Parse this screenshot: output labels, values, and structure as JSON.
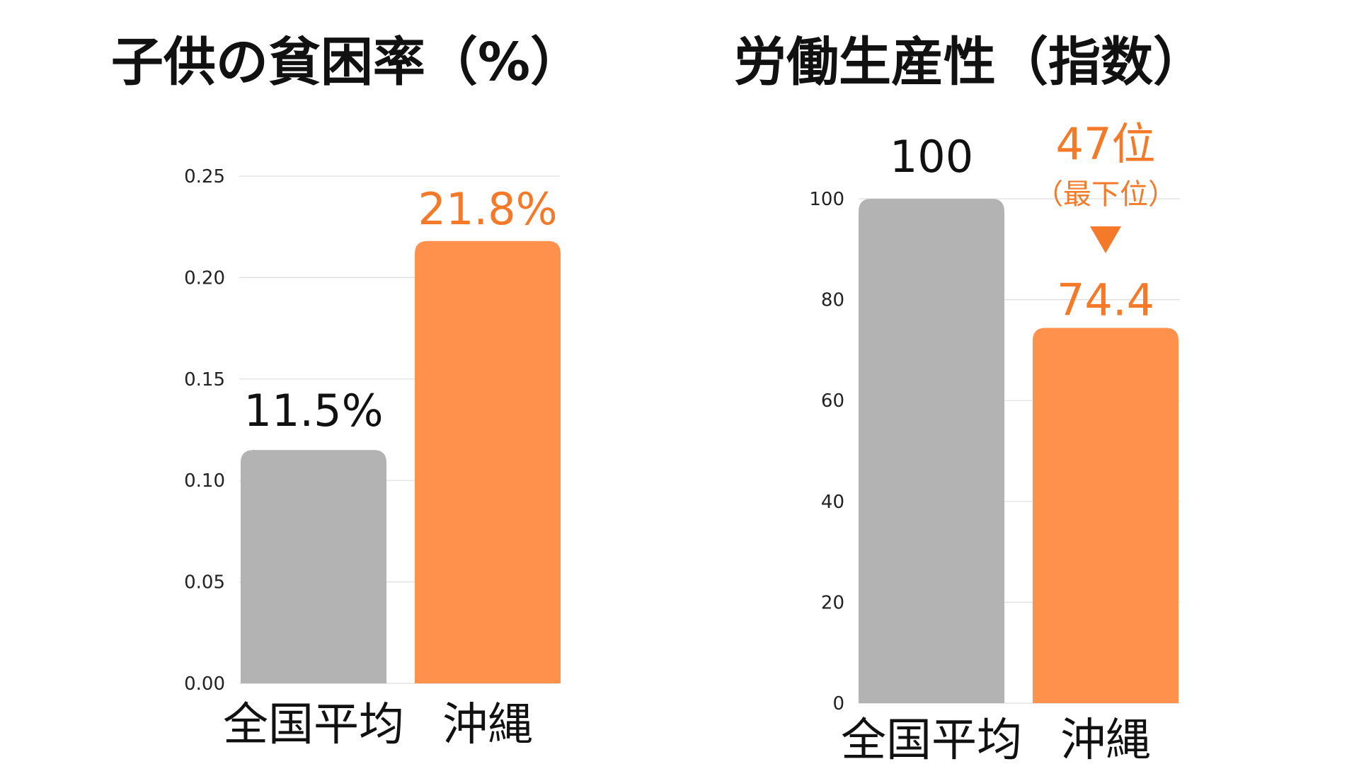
{
  "chart_data": [
    {
      "type": "bar",
      "title": "子供の貧困率（%）",
      "categories": [
        "全国平均",
        "沖縄"
      ],
      "values": [
        0.115,
        0.218
      ],
      "value_labels": [
        "11.5%",
        "21.8%"
      ],
      "bar_colors": [
        "#b3b3b3",
        "#ff914d"
      ],
      "value_label_colors": [
        "#111111",
        "#f47a2a"
      ],
      "ylim": [
        0,
        0.25
      ],
      "yticks": [
        "0.00",
        "0.05",
        "0.10",
        "0.15",
        "0.20",
        "0.25"
      ],
      "ytick_values": [
        0,
        0.05,
        0.1,
        0.15,
        0.2,
        0.25
      ],
      "grid": true
    },
    {
      "type": "bar",
      "title": "労働生産性（指数）",
      "categories": [
        "全国平均",
        "沖縄"
      ],
      "values": [
        100,
        74.4
      ],
      "value_labels": [
        "100",
        "74.4"
      ],
      "bar_colors": [
        "#b3b3b3",
        "#ff914d"
      ],
      "value_label_colors": [
        "#111111",
        "#f47a2a"
      ],
      "ylim": [
        0,
        100
      ],
      "yticks": [
        "0",
        "20",
        "40",
        "60",
        "80",
        "100"
      ],
      "ytick_values": [
        0,
        20,
        40,
        60,
        80,
        100
      ],
      "grid": true,
      "annotation": {
        "rank": "47位",
        "note": "（最下位）",
        "color": "#f47a2a",
        "marker": "down-triangle"
      }
    }
  ]
}
